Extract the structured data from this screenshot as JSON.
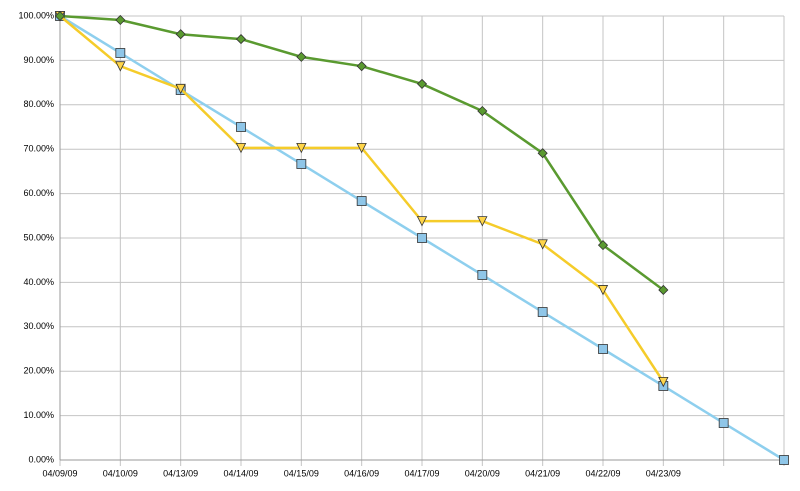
{
  "chart_data": {
    "type": "line",
    "categories": [
      "04/09/09",
      "04/10/09",
      "04/13/09",
      "04/14/09",
      "04/15/09",
      "04/16/09",
      "04/17/09",
      "04/20/09",
      "04/21/09",
      "04/22/09",
      "04/23/09",
      null,
      null
    ],
    "series": [
      {
        "color": "#8ecfee",
        "marker": "square",
        "marker_color": "#8fc6e8",
        "values": [
          100,
          91.67,
          83.33,
          75,
          66.67,
          58.33,
          50,
          41.67,
          33.33,
          25,
          16.67,
          8.33,
          0
        ]
      },
      {
        "color": "#f5cc2a",
        "marker": "triangle-down",
        "marker_color": "#ffd54a",
        "values": [
          100,
          88.7,
          83.6,
          70.3,
          70.3,
          70.3,
          53.8,
          53.8,
          48.6,
          38.3,
          17.6,
          null,
          null
        ]
      },
      {
        "color": "#5a9a30",
        "marker": "diamond",
        "marker_color": "#5a9a30",
        "values": [
          100,
          99.1,
          95.9,
          94.8,
          90.8,
          88.7,
          84.7,
          78.6,
          69.1,
          48.4,
          38.3,
          null,
          null
        ]
      }
    ],
    "ylim": [
      0,
      100
    ],
    "yticks": [
      {
        "value": 0,
        "label": "0.00%"
      },
      {
        "value": 10,
        "label": "10.00%"
      },
      {
        "value": 20,
        "label": "20.00%"
      },
      {
        "value": 30,
        "label": "30.00%"
      },
      {
        "value": 40,
        "label": "40.00%"
      },
      {
        "value": 50,
        "label": "50.00%"
      },
      {
        "value": 60,
        "label": "60.00%"
      },
      {
        "value": 70,
        "label": "70.00%"
      },
      {
        "value": 80,
        "label": "80.00%"
      },
      {
        "value": 90,
        "label": "90.00%"
      },
      {
        "value": 100,
        "label": "100.00%"
      }
    ],
    "grid": true
  }
}
